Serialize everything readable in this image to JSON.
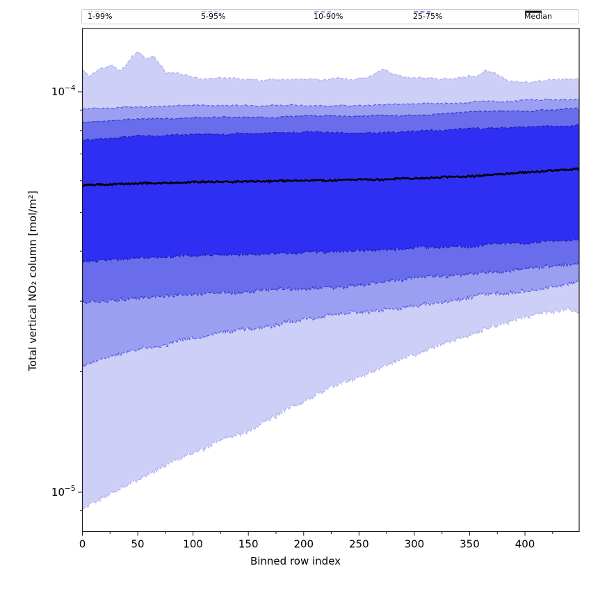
{
  "accent_color": "#0000ff",
  "chart_data": {
    "type": "area",
    "subtype": "percentile-fan",
    "title": "",
    "xlabel": "Binned row index",
    "ylabel": "Total vertical NO₂ column [mol/m²]",
    "x_axis": {
      "lim": [
        0,
        449
      ],
      "major_ticks": [
        0,
        50,
        100,
        150,
        200,
        250,
        300,
        350,
        400
      ],
      "minor_ticks": [
        25,
        75,
        125,
        175,
        225,
        275,
        325,
        375,
        425
      ],
      "grid": false
    },
    "y_axis": {
      "scale": "log",
      "lim": [
        7.97e-06,
        0.000144
      ],
      "major_ticks": [
        {
          "value": 0.0001,
          "mantissa": "10",
          "exponent": "−4"
        },
        {
          "value": 1e-05,
          "mantissa": "10",
          "exponent": "−5"
        }
      ],
      "minor_ticks": [
        9e-06,
        2e-05,
        3e-05,
        4e-05,
        5e-05,
        6e-05,
        7e-05,
        8e-05,
        9e-05
      ],
      "grid": false
    },
    "legend": {
      "position": "top",
      "entries": [
        {
          "label": "1-99%",
          "color": "#cfd1f7",
          "style": "dashed"
        },
        {
          "label": "5-95%",
          "color": "#a7aaf4",
          "style": "dashed"
        },
        {
          "label": "10-90%",
          "color": "#7d81ef",
          "style": "dashed"
        },
        {
          "label": "25-75%",
          "color": "#5054e6",
          "style": "dashed"
        },
        {
          "label": "Median",
          "color": "#000000",
          "style": "solid"
        }
      ]
    },
    "bands": [
      {
        "name": "1-99%",
        "lo": "p1",
        "hi": "p99",
        "fill": "#cdcff7",
        "line": "#a9acf3"
      },
      {
        "name": "5-95%",
        "lo": "p5",
        "hi": "p95",
        "fill": "#9b9ff2",
        "line": "#5356de"
      },
      {
        "name": "10-90%",
        "lo": "p10",
        "hi": "p90",
        "fill": "#696dec",
        "line": "#3236c6"
      },
      {
        "name": "25-75%",
        "lo": "p25",
        "hi": "p75",
        "fill": "#2e2ff2",
        "line": "#1c1cae"
      }
    ],
    "median_style": {
      "color": "#000000",
      "width": 2.5
    },
    "series": {
      "p1": {
        "x": [
          0,
          25,
          50,
          75,
          100,
          125,
          150,
          175,
          200,
          230,
          260,
          290,
          320,
          350,
          380,
          410,
          440,
          449
        ],
        "values": [
          9.1e-06,
          9.9e-06,
          1.07e-05,
          1.17e-05,
          1.25e-05,
          1.34e-05,
          1.42e-05,
          1.54e-05,
          1.67e-05,
          1.83e-05,
          1.98e-05,
          2.14e-05,
          2.3e-05,
          2.47e-05,
          2.65e-05,
          2.78e-05,
          2.89e-05,
          2.86e-05
        ]
      },
      "p5": {
        "x": [
          0,
          50,
          100,
          150,
          200,
          250,
          300,
          350,
          400,
          449
        ],
        "values": [
          2.06e-05,
          2.26e-05,
          2.42e-05,
          2.56e-05,
          2.69e-05,
          2.81e-05,
          2.93e-05,
          3.06e-05,
          3.2e-05,
          3.33e-05
        ]
      },
      "p10": {
        "x": [
          0,
          50,
          100,
          150,
          200,
          250,
          300,
          350,
          400,
          449
        ],
        "values": [
          2.98e-05,
          3.06e-05,
          3.12e-05,
          3.18e-05,
          3.24e-05,
          3.3e-05,
          3.42e-05,
          3.52e-05,
          3.62e-05,
          3.72e-05
        ]
      },
      "p25": {
        "x": [
          0,
          50,
          100,
          150,
          200,
          250,
          300,
          350,
          400,
          449
        ],
        "values": [
          3.77e-05,
          3.85e-05,
          3.9e-05,
          3.93e-05,
          3.96e-05,
          4e-05,
          4.06e-05,
          4.12e-05,
          4.2e-05,
          4.28e-05
        ]
      },
      "median": {
        "x": [
          0,
          50,
          100,
          150,
          200,
          250,
          300,
          350,
          400,
          449
        ],
        "values": [
          5.83e-05,
          5.9e-05,
          5.94e-05,
          5.97e-05,
          6e-05,
          6.03e-05,
          6.08e-05,
          6.16e-05,
          6.28e-05,
          6.43e-05
        ]
      },
      "p75": {
        "x": [
          0,
          50,
          100,
          150,
          200,
          250,
          300,
          350,
          400,
          449
        ],
        "values": [
          7.55e-05,
          7.72e-05,
          7.8e-05,
          7.85e-05,
          7.9e-05,
          7.9e-05,
          7.96e-05,
          8.06e-05,
          8.16e-05,
          8.28e-05
        ]
      },
      "p90": {
        "x": [
          0,
          50,
          100,
          150,
          200,
          250,
          300,
          350,
          400,
          449
        ],
        "values": [
          8.38e-05,
          8.52e-05,
          8.62e-05,
          8.65e-05,
          8.7e-05,
          8.7e-05,
          8.76e-05,
          8.9e-05,
          9e-05,
          9.07e-05
        ]
      },
      "p95": {
        "x": [
          0,
          50,
          100,
          150,
          200,
          250,
          300,
          350,
          400,
          449
        ],
        "values": [
          9.05e-05,
          9.15e-05,
          9.26e-05,
          9.2e-05,
          9.25e-05,
          9.25e-05,
          9.32e-05,
          9.42e-05,
          9.5e-05,
          9.58e-05
        ]
      },
      "p99": {
        "x": [
          0,
          6,
          12,
          20,
          27,
          34,
          42,
          50,
          57,
          65,
          75,
          88,
          100,
          120,
          140,
          160,
          180,
          200,
          215,
          230,
          245,
          258,
          273,
          285,
          300,
          315,
          330,
          345,
          357,
          364,
          372,
          385,
          400,
          415,
          430,
          440,
          449
        ],
        "values": [
          0.000114,
          0.000108,
          0.000112,
          0.000115,
          0.000117,
          0.000113,
          0.00012,
          0.000127,
          0.000121,
          0.000123,
          0.000113,
          0.000111,
          0.000109,
          0.0001075,
          0.000108,
          0.000107,
          0.0001075,
          0.000108,
          0.000107,
          0.0001072,
          0.000108,
          0.000109,
          0.000114,
          0.00011,
          0.000108,
          0.0001085,
          0.000108,
          0.000109,
          0.00011,
          0.000113,
          0.000111,
          0.0001065,
          0.000105,
          0.000106,
          0.0001065,
          0.000107,
          0.000108
        ]
      }
    }
  }
}
